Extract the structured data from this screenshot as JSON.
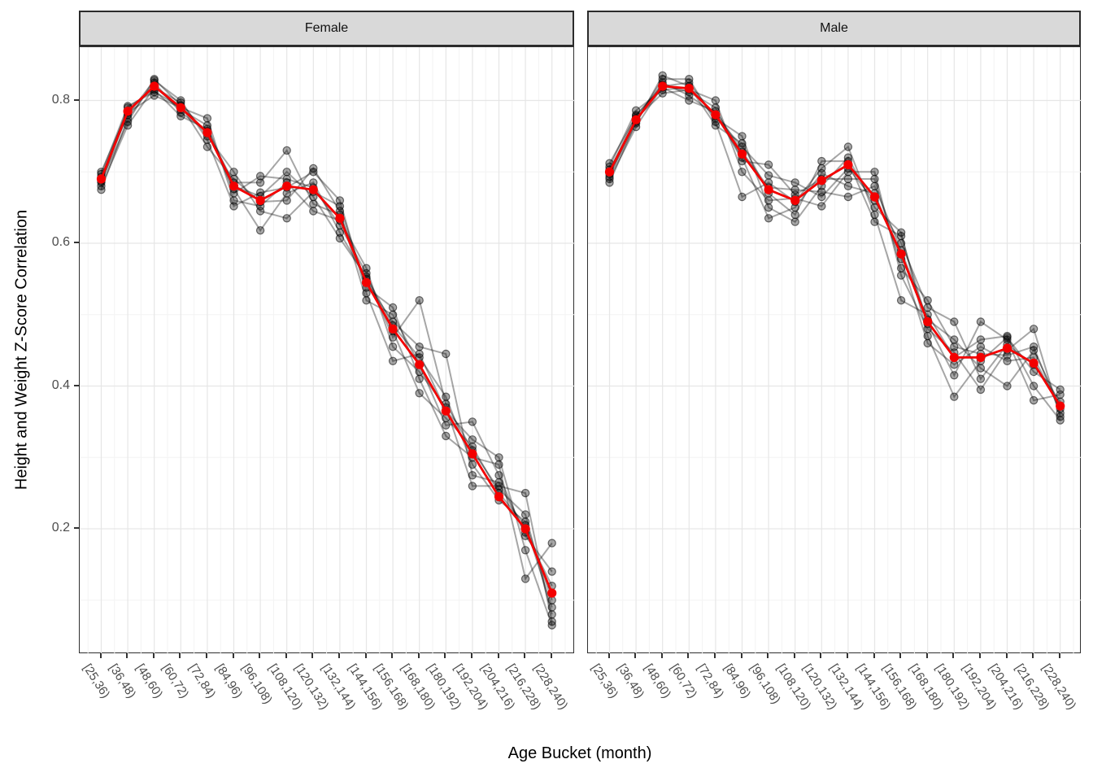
{
  "figure": {
    "x_axis_title": "Age Bucket (month)",
    "y_axis_title": "Height and Weight Z-Score Correlation",
    "y_tick_labels": [
      "0.8",
      "0.6",
      "0.4",
      "0.2"
    ],
    "y_tick_values": [
      0.8,
      0.6,
      0.4,
      0.2
    ],
    "y_minor_values": [
      0.7,
      0.5,
      0.3,
      0.1
    ],
    "facets": [
      "Female",
      "Male"
    ],
    "colors": {
      "mean_line": "#f30000",
      "individual_line": "rgba(0,0,0,0.35)",
      "individual_point_fill": "rgba(0,0,0,0.34)",
      "individual_point_stroke": "rgba(0,0,0,0.55)",
      "strip_fill": "#d9d9d9",
      "panel_border": "#2f2f2f",
      "grid_major": "#e6e6e6",
      "grid_minor": "#f3f3f3",
      "tick_mark": "#333333",
      "tick_label": "#4d4d4d",
      "title_text": "#000000"
    }
  },
  "chart_data": [
    {
      "type": "line",
      "facet": "Female",
      "xlabel": "Age Bucket (month)",
      "ylabel": "Height and Weight Z-Score Correlation",
      "ylim": [
        0.025,
        0.875
      ],
      "yticks": [
        0.2,
        0.4,
        0.6,
        0.8
      ],
      "grid": true,
      "legend": "none",
      "categories": [
        "[25,36)",
        "[36,48)",
        "[48,60)",
        "[60,72)",
        "[72,84)",
        "[84,96)",
        "[96,108)",
        "[108,120)",
        "[120,132)",
        "[132,144)",
        "[144,156)",
        "[156,168)",
        "[168,180)",
        "[180,192)",
        "[192,204)",
        "[204,216)",
        "[216,228)",
        "[228,240)"
      ],
      "series": [
        {
          "name": "individual-1",
          "role": "individual",
          "values": [
            0.675,
            0.775,
            0.825,
            0.783,
            0.757,
            0.676,
            0.618,
            0.67,
            0.685,
            0.615,
            0.55,
            0.477,
            0.39,
            0.355,
            0.315,
            0.25,
            0.205,
            0.09
          ]
        },
        {
          "name": "individual-2",
          "role": "individual",
          "values": [
            0.68,
            0.765,
            0.818,
            0.797,
            0.75,
            0.7,
            0.645,
            0.635,
            0.672,
            0.652,
            0.538,
            0.51,
            0.41,
            0.33,
            0.3,
            0.29,
            0.13,
            0.18
          ]
        },
        {
          "name": "individual-3",
          "role": "individual",
          "values": [
            0.685,
            0.783,
            0.807,
            0.79,
            0.775,
            0.66,
            0.652,
            0.685,
            0.645,
            0.632,
            0.565,
            0.455,
            0.42,
            0.37,
            0.26,
            0.26,
            0.25,
            0.07
          ]
        },
        {
          "name": "individual-4",
          "role": "individual",
          "values": [
            0.687,
            0.77,
            0.83,
            0.793,
            0.735,
            0.69,
            0.658,
            0.66,
            0.705,
            0.645,
            0.52,
            0.5,
            0.43,
            0.345,
            0.35,
            0.275,
            0.19,
            0.14
          ]
        },
        {
          "name": "individual-5",
          "role": "individual",
          "values": [
            0.69,
            0.79,
            0.815,
            0.778,
            0.76,
            0.68,
            0.666,
            0.7,
            0.665,
            0.607,
            0.553,
            0.485,
            0.44,
            0.385,
            0.29,
            0.24,
            0.21,
            0.1
          ]
        },
        {
          "name": "individual-6",
          "role": "individual",
          "values": [
            0.693,
            0.78,
            0.828,
            0.8,
            0.745,
            0.652,
            0.671,
            0.678,
            0.7,
            0.66,
            0.53,
            0.435,
            0.445,
            0.365,
            0.325,
            0.3,
            0.17,
            0.065
          ]
        },
        {
          "name": "individual-7",
          "role": "individual",
          "values": [
            0.697,
            0.792,
            0.812,
            0.791,
            0.755,
            0.685,
            0.685,
            0.73,
            0.655,
            0.64,
            0.545,
            0.49,
            0.455,
            0.445,
            0.275,
            0.265,
            0.195,
            0.12
          ]
        },
        {
          "name": "individual-8",
          "role": "individual",
          "values": [
            0.7,
            0.785,
            0.82,
            0.787,
            0.765,
            0.67,
            0.694,
            0.69,
            0.678,
            0.625,
            0.558,
            0.468,
            0.52,
            0.375,
            0.31,
            0.255,
            0.22,
            0.08
          ]
        },
        {
          "name": "mean",
          "role": "mean",
          "values": [
            0.69,
            0.785,
            0.82,
            0.79,
            0.755,
            0.68,
            0.66,
            0.68,
            0.675,
            0.635,
            0.545,
            0.48,
            0.43,
            0.365,
            0.305,
            0.245,
            0.2,
            0.11
          ]
        }
      ]
    },
    {
      "type": "line",
      "facet": "Male",
      "xlabel": "Age Bucket (month)",
      "ylabel": "Height and Weight Z-Score Correlation",
      "ylim": [
        0.025,
        0.875
      ],
      "yticks": [
        0.2,
        0.4,
        0.6,
        0.8
      ],
      "grid": true,
      "legend": "none",
      "categories": [
        "[25,36)",
        "[36,48)",
        "[48,60)",
        "[60,72)",
        "[72,84)",
        "[84,96)",
        "[96,108)",
        "[108,120)",
        "[120,132)",
        "[132,144)",
        "[144,156)",
        "[156,168)",
        "[168,180)",
        "[180,192)",
        "[192,204)",
        "[204,216)",
        "[216,228)",
        "[228,240)"
      ],
      "series": [
        {
          "name": "individual-1",
          "role": "individual",
          "values": [
            0.685,
            0.77,
            0.825,
            0.807,
            0.78,
            0.72,
            0.635,
            0.65,
            0.698,
            0.68,
            0.67,
            0.578,
            0.46,
            0.43,
            0.455,
            0.435,
            0.44,
            0.368
          ]
        },
        {
          "name": "individual-2",
          "role": "individual",
          "values": [
            0.69,
            0.763,
            0.82,
            0.825,
            0.775,
            0.75,
            0.65,
            0.63,
            0.68,
            0.72,
            0.65,
            0.615,
            0.47,
            0.385,
            0.435,
            0.468,
            0.42,
            0.395
          ]
        },
        {
          "name": "individual-3",
          "role": "individual",
          "values": [
            0.693,
            0.775,
            0.81,
            0.815,
            0.8,
            0.7,
            0.66,
            0.663,
            0.652,
            0.7,
            0.7,
            0.555,
            0.48,
            0.447,
            0.395,
            0.45,
            0.48,
            0.357
          ]
        },
        {
          "name": "individual-4",
          "role": "individual",
          "values": [
            0.697,
            0.768,
            0.835,
            0.82,
            0.765,
            0.74,
            0.67,
            0.64,
            0.715,
            0.715,
            0.63,
            0.61,
            0.487,
            0.415,
            0.49,
            0.465,
            0.38,
            0.388
          ]
        },
        {
          "name": "individual-5",
          "role": "individual",
          "values": [
            0.7,
            0.78,
            0.818,
            0.8,
            0.785,
            0.728,
            0.678,
            0.675,
            0.672,
            0.665,
            0.68,
            0.59,
            0.493,
            0.465,
            0.425,
            0.4,
            0.45,
            0.372
          ]
        },
        {
          "name": "individual-6",
          "role": "individual",
          "values": [
            0.703,
            0.772,
            0.83,
            0.83,
            0.77,
            0.665,
            0.685,
            0.658,
            0.705,
            0.735,
            0.64,
            0.52,
            0.5,
            0.44,
            0.465,
            0.47,
            0.4,
            0.352
          ]
        },
        {
          "name": "individual-7",
          "role": "individual",
          "values": [
            0.707,
            0.786,
            0.815,
            0.818,
            0.778,
            0.735,
            0.695,
            0.685,
            0.665,
            0.705,
            0.66,
            0.6,
            0.51,
            0.49,
            0.41,
            0.458,
            0.43,
            0.378
          ]
        },
        {
          "name": "individual-8",
          "role": "individual",
          "values": [
            0.712,
            0.778,
            0.822,
            0.812,
            0.79,
            0.715,
            0.71,
            0.668,
            0.69,
            0.69,
            0.69,
            0.565,
            0.52,
            0.455,
            0.445,
            0.443,
            0.455,
            0.362
          ]
        },
        {
          "name": "mean",
          "role": "mean",
          "values": [
            0.7,
            0.773,
            0.82,
            0.817,
            0.78,
            0.725,
            0.675,
            0.66,
            0.688,
            0.71,
            0.665,
            0.585,
            0.49,
            0.44,
            0.44,
            0.453,
            0.432,
            0.372
          ]
        }
      ]
    }
  ]
}
